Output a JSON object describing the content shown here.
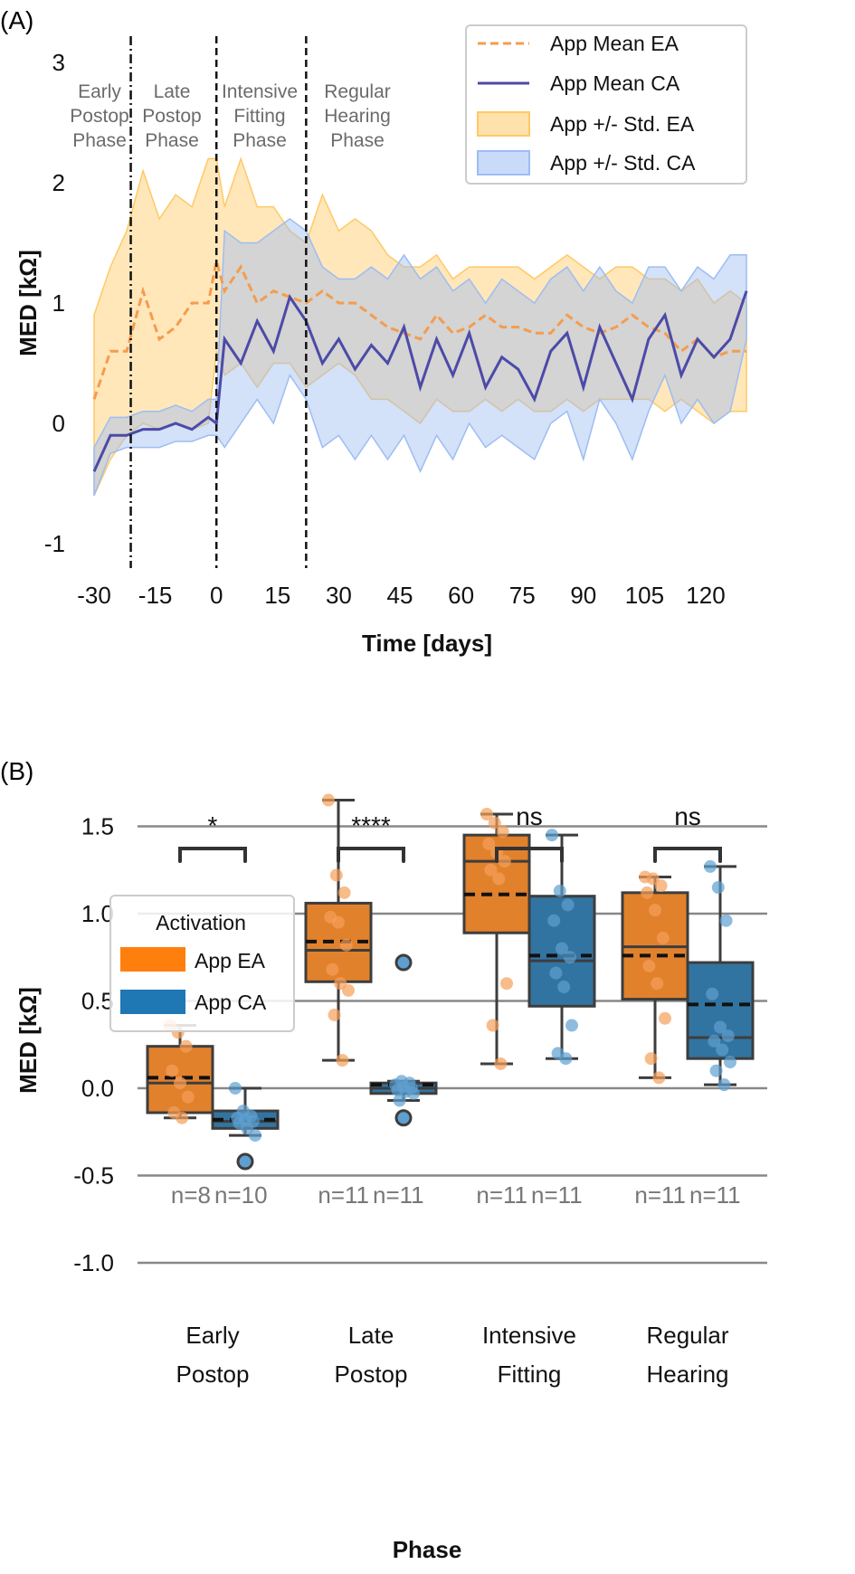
{
  "colors": {
    "ea_line": "#f59c4e",
    "ca_line": "#4c4aa8",
    "ea_band": "#ffc966",
    "ca_band": "#9dbdf2",
    "ea_box": "#e1812c",
    "ca_box": "#3274a1",
    "ea_point": "#f5a05a",
    "ca_point": "#5e9fd0",
    "edge": "#3d3d3d"
  },
  "chart_data": [
    {
      "type": "line",
      "panel_label": "(A)",
      "xlabel": "Time [days]",
      "ylabel": "MED [kΩ]",
      "xlim": [
        -30,
        130
      ],
      "ylim": [
        -1,
        3
      ],
      "xticks": [
        "-30",
        "-15",
        "0",
        "15",
        "30",
        "45",
        "60",
        "75",
        "90",
        "105",
        "120"
      ],
      "yticks": [
        "3",
        "2",
        "1",
        "0",
        "-1"
      ],
      "grid": false,
      "legend_position": "top-right",
      "phase_markers": [
        {
          "x": -21,
          "style": "dash-dot",
          "label": [
            "Early",
            "Postop",
            "Phase"
          ]
        },
        {
          "x": 0,
          "style": "dashed",
          "label": [
            "Late",
            "Postop",
            "Phase"
          ]
        },
        {
          "x": 22,
          "style": "dashed",
          "label": [
            "Intensive",
            "Fitting",
            "Phase"
          ]
        },
        {
          "label": [
            "Regular",
            "Hearing",
            "Phase"
          ]
        }
      ],
      "legend": [
        "App Mean EA",
        "App Mean CA",
        "App +/- Std. EA",
        "App +/- Std. CA"
      ],
      "x": [
        -30,
        -26,
        -22,
        -18,
        -14,
        -10,
        -6,
        -2,
        0,
        2,
        6,
        10,
        14,
        18,
        22,
        26,
        30,
        34,
        38,
        42,
        46,
        50,
        54,
        58,
        62,
        66,
        70,
        74,
        78,
        82,
        86,
        90,
        94,
        98,
        102,
        106,
        110,
        114,
        118,
        122,
        126,
        130
      ],
      "series": [
        {
          "name": "App Mean EA",
          "values": [
            0.2,
            0.6,
            0.6,
            1.1,
            0.7,
            0.8,
            1.0,
            1.0,
            1.35,
            1.1,
            1.3,
            1.0,
            1.1,
            1.05,
            1.0,
            1.1,
            1.0,
            1.0,
            0.9,
            0.8,
            0.75,
            0.7,
            0.9,
            0.75,
            0.8,
            0.9,
            0.8,
            0.8,
            0.75,
            0.75,
            0.9,
            0.8,
            0.75,
            0.8,
            0.9,
            0.8,
            0.75,
            0.6,
            0.7,
            0.55,
            0.6,
            0.6
          ]
        },
        {
          "name": "App Mean CA",
          "values": [
            -0.4,
            -0.1,
            -0.1,
            -0.05,
            -0.05,
            0.0,
            -0.05,
            0.05,
            0.0,
            0.7,
            0.5,
            0.85,
            0.6,
            1.05,
            0.85,
            0.5,
            0.7,
            0.45,
            0.65,
            0.5,
            0.8,
            0.3,
            0.7,
            0.4,
            0.75,
            0.3,
            0.55,
            0.45,
            0.2,
            0.6,
            0.75,
            0.3,
            0.8,
            0.5,
            0.2,
            0.7,
            0.9,
            0.4,
            0.7,
            0.55,
            0.7,
            1.1
          ]
        },
        {
          "name": "App +/- Std. EA",
          "upper": [
            0.9,
            1.3,
            1.6,
            2.1,
            1.7,
            1.9,
            1.8,
            2.2,
            2.2,
            1.8,
            2.2,
            1.8,
            1.8,
            1.6,
            1.5,
            1.9,
            1.6,
            1.7,
            1.6,
            1.4,
            1.3,
            1.3,
            1.4,
            1.2,
            1.3,
            1.3,
            1.3,
            1.3,
            1.2,
            1.3,
            1.4,
            1.3,
            1.2,
            1.3,
            1.3,
            1.2,
            1.2,
            1.1,
            1.2,
            1.0,
            1.1,
            1.0
          ],
          "lower": [
            -0.6,
            -0.3,
            -0.1,
            0.0,
            -0.05,
            0.0,
            -0.05,
            0.0,
            0.6,
            0.4,
            0.5,
            0.3,
            0.5,
            0.5,
            0.3,
            0.4,
            0.5,
            0.4,
            0.2,
            0.2,
            0.1,
            0.0,
            0.2,
            0.1,
            0.1,
            0.2,
            0.1,
            0.2,
            0.1,
            0.1,
            0.2,
            0.1,
            0.2,
            0.2,
            0.2,
            0.2,
            0.1,
            0.2,
            0.1,
            0.0,
            0.1,
            0.1
          ]
        },
        {
          "name": "App +/- Std. CA",
          "upper": [
            -0.2,
            0.05,
            0.05,
            0.1,
            0.1,
            0.15,
            0.1,
            0.2,
            0.2,
            1.6,
            1.5,
            1.5,
            1.6,
            1.7,
            1.6,
            1.3,
            1.2,
            1.2,
            1.3,
            1.2,
            1.4,
            1.2,
            1.3,
            1.1,
            1.2,
            1.0,
            1.2,
            1.1,
            1.0,
            1.2,
            1.3,
            1.1,
            1.3,
            1.1,
            1.0,
            1.3,
            1.3,
            1.1,
            1.3,
            1.2,
            1.4,
            1.4
          ],
          "lower": [
            -0.6,
            -0.25,
            -0.2,
            -0.2,
            -0.2,
            -0.15,
            -0.15,
            -0.1,
            -0.1,
            -0.2,
            0.0,
            0.2,
            0.0,
            0.4,
            0.2,
            -0.2,
            -0.1,
            -0.3,
            -0.1,
            -0.3,
            -0.1,
            -0.4,
            -0.1,
            -0.3,
            0.0,
            -0.2,
            -0.1,
            -0.2,
            -0.3,
            0.0,
            0.1,
            -0.3,
            0.2,
            0.0,
            -0.3,
            0.1,
            0.4,
            0.0,
            0.2,
            0.0,
            0.1,
            0.7
          ]
        }
      ]
    },
    {
      "type": "box",
      "panel_label": "(B)",
      "xlabel": "Phase",
      "ylabel": "MED [kΩ]",
      "ylim": [
        -1.0,
        1.5
      ],
      "yticks": [
        "1.5",
        "1.0",
        "0.5",
        "0.0",
        "-0.5",
        "-1.0"
      ],
      "grid": true,
      "legend_position": "upper-left",
      "legend_title": "Activation",
      "legend": [
        "App EA",
        "App CA"
      ],
      "categories": [
        [
          "Early",
          "Postop"
        ],
        [
          "Late",
          "Postop"
        ],
        [
          "Intensive",
          "Fitting"
        ],
        [
          "Regular",
          "Hearing"
        ]
      ],
      "significance": [
        "*",
        "****",
        "ns",
        "ns"
      ],
      "n_labels": [
        [
          "n=8",
          "n=10"
        ],
        [
          "n=11",
          "n=11"
        ],
        [
          "n=11",
          "n=11"
        ],
        [
          "n=11",
          "n=11"
        ]
      ],
      "series": [
        {
          "name": "App EA",
          "boxes": [
            {
              "whisker_high": 0.36,
              "q3": 0.24,
              "median": 0.03,
              "mean": 0.06,
              "q1": -0.14,
              "whisker_low": -0.17,
              "outliers": [],
              "points": [
                0.36,
                0.32,
                0.24,
                0.1,
                0.03,
                -0.05,
                -0.14,
                -0.17
              ]
            },
            {
              "whisker_high": 1.65,
              "q3": 1.06,
              "median": 0.79,
              "mean": 0.84,
              "q1": 0.61,
              "whisker_low": 0.16,
              "outliers": [],
              "points": [
                1.65,
                1.22,
                1.12,
                0.98,
                0.95,
                0.82,
                0.68,
                0.6,
                0.56,
                0.42,
                0.16
              ]
            },
            {
              "whisker_high": 1.57,
              "q3": 1.45,
              "median": 1.3,
              "mean": 1.11,
              "q1": 0.89,
              "whisker_low": 0.14,
              "outliers": [],
              "points": [
                1.57,
                1.52,
                1.47,
                1.4,
                1.35,
                1.3,
                1.25,
                1.2,
                0.6,
                0.36,
                0.14
              ]
            },
            {
              "whisker_high": 1.21,
              "q3": 1.12,
              "median": 0.81,
              "mean": 0.76,
              "q1": 0.51,
              "whisker_low": 0.06,
              "outliers": [],
              "points": [
                1.21,
                1.2,
                1.16,
                1.12,
                1.02,
                0.86,
                0.7,
                0.6,
                0.4,
                0.17,
                0.06
              ]
            }
          ]
        },
        {
          "name": "App CA",
          "boxes": [
            {
              "whisker_high": 0.0,
              "q3": -0.13,
              "median": -0.19,
              "mean": -0.18,
              "q1": -0.23,
              "whisker_low": -0.27,
              "outliers": [
                -0.42
              ],
              "points": [
                0.0,
                -0.13,
                -0.16,
                -0.17,
                -0.18,
                -0.19,
                -0.2,
                -0.23,
                -0.27,
                -0.42
              ]
            },
            {
              "whisker_high": 0.04,
              "q3": 0.03,
              "median": 0.0,
              "mean": 0.02,
              "q1": -0.03,
              "whisker_low": -0.07,
              "outliers": [
                0.72,
                -0.17
              ],
              "points": [
                0.72,
                0.04,
                0.03,
                0.02,
                0.01,
                0.0,
                -0.01,
                -0.02,
                -0.03,
                -0.07,
                -0.17
              ]
            },
            {
              "whisker_high": 1.45,
              "q3": 1.1,
              "median": 0.73,
              "mean": 0.76,
              "q1": 0.47,
              "whisker_low": 0.17,
              "outliers": [],
              "points": [
                1.45,
                1.13,
                1.05,
                0.96,
                0.8,
                0.75,
                0.66,
                0.58,
                0.36,
                0.2,
                0.17
              ]
            },
            {
              "whisker_high": 1.27,
              "q3": 0.72,
              "median": 0.29,
              "mean": 0.48,
              "q1": 0.17,
              "whisker_low": 0.02,
              "outliers": [],
              "points": [
                1.27,
                1.15,
                0.96,
                0.54,
                0.35,
                0.3,
                0.27,
                0.22,
                0.15,
                0.1,
                0.02
              ]
            }
          ]
        }
      ]
    }
  ]
}
